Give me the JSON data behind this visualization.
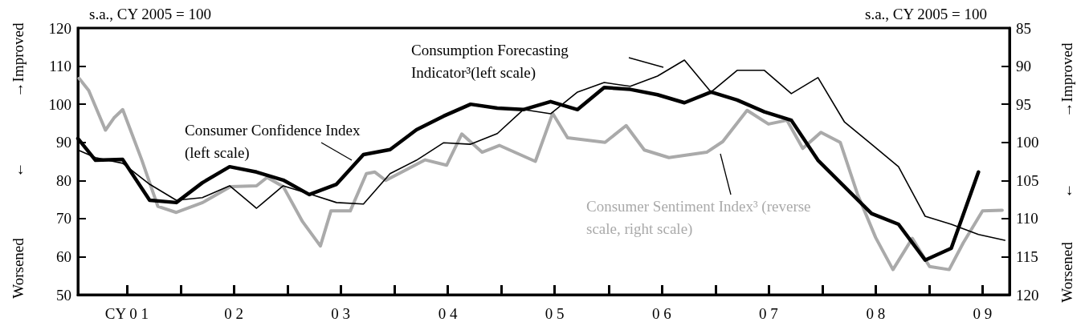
{
  "chart_data": {
    "type": "line",
    "ylabel": "s.a., CY 2005 = 100",
    "y2label": "s.a., CY 2005 = 100",
    "annotations": [
      "→Improved",
      "←",
      "Worsened",
      "→Improved",
      "←",
      "Worsened"
    ],
    "xlim": [
      "2001-01-15",
      "2009-10-01"
    ],
    "xticks": [
      {
        "value": "2001-07-01",
        "label": "CY 0 1"
      },
      {
        "value": "2002-01-01",
        "label": null
      },
      {
        "value": "2002-07-01",
        "label": "0 2"
      },
      {
        "value": "2003-01-01",
        "label": null
      },
      {
        "value": "2003-07-01",
        "label": "0 3"
      },
      {
        "value": "2004-01-01",
        "label": null
      },
      {
        "value": "2004-07-01",
        "label": "0 4"
      },
      {
        "value": "2005-01-01",
        "label": null
      },
      {
        "value": "2005-07-01",
        "label": "0 5"
      },
      {
        "value": "2006-01-01",
        "label": null
      },
      {
        "value": "2006-07-01",
        "label": "0 6"
      },
      {
        "value": "2007-01-01",
        "label": null
      },
      {
        "value": "2007-07-01",
        "label": "0 7"
      },
      {
        "value": "2008-01-01",
        "label": null
      },
      {
        "value": "2008-07-01",
        "label": "0 8"
      },
      {
        "value": "2009-01-01",
        "label": null
      },
      {
        "value": "2009-07-01",
        "label": "0 9"
      }
    ],
    "ylim": [
      50,
      120
    ],
    "yticks": [
      50,
      60,
      70,
      80,
      90,
      100,
      110,
      120
    ],
    "y2lim": [
      120,
      85
    ],
    "y2ticks": [
      85,
      90,
      95,
      100,
      105,
      110,
      115,
      120
    ],
    "grid": false,
    "legend": false,
    "marker": "none",
    "line_style": "solid",
    "series": [
      {
        "name": "Consumer Confidence Index (left scale)",
        "color": "#000000",
        "x": [
          "2001-01-15",
          "2001-03-16",
          "2001-06-17",
          "2001-09-17",
          "2001-12-17",
          "2002-03-16",
          "2002-06-17",
          "2002-09-17",
          "2002-12-17",
          "2003-03-16",
          "2003-06-17",
          "2003-09-17",
          "2003-12-17",
          "2004-03-16",
          "2004-06-17",
          "2004-09-17",
          "2004-12-17",
          "2005-03-16",
          "2005-06-17",
          "2005-09-17",
          "2005-12-17",
          "2006-03-16",
          "2006-06-17",
          "2006-09-17",
          "2006-12-17",
          "2007-03-16",
          "2007-06-17",
          "2007-09-17",
          "2007-12-17",
          "2008-03-16",
          "2008-06-17",
          "2008-09-17",
          "2008-12-17",
          "2009-03-16",
          "2009-06-17"
        ],
        "values": [
          91,
          85.3,
          85.5,
          74.8,
          74.2,
          79.4,
          83.6,
          82.2,
          80.1,
          76.3,
          79,
          86.8,
          88.1,
          93.3,
          96.9,
          100,
          99,
          98.6,
          100.7,
          98.6,
          104.4,
          103.9,
          102.5,
          100.4,
          103.2,
          101.1,
          98,
          95.8,
          85.3,
          78.4,
          71.3,
          68.5,
          59.1,
          62.2,
          82.2
        ]
      },
      {
        "name": "Consumption Forecasting Indicator³(left scale)",
        "color": "#000000",
        "x": [
          "2001-01-15",
          "2001-03-16",
          "2001-06-17",
          "2001-09-17",
          "2001-12-17",
          "2002-03-16",
          "2002-06-17",
          "2002-09-17",
          "2002-12-17",
          "2003-03-16",
          "2003-06-17",
          "2003-09-17",
          "2003-12-17",
          "2004-03-16",
          "2004-06-17",
          "2004-09-17",
          "2004-12-17",
          "2005-03-16",
          "2005-06-17",
          "2005-09-17",
          "2005-12-17",
          "2006-03-16",
          "2006-06-17",
          "2006-09-17",
          "2006-12-17",
          "2007-03-16",
          "2007-06-17",
          "2007-09-17",
          "2007-12-17",
          "2008-03-16",
          "2008-06-17",
          "2008-09-17",
          "2008-12-17",
          "2009-03-16",
          "2009-06-17",
          "2009-09-15"
        ],
        "values": [
          88,
          86,
          84.5,
          79,
          74.8,
          75.5,
          78.6,
          72.7,
          78.6,
          76.5,
          74.2,
          73.8,
          81.8,
          85.3,
          89.9,
          89.5,
          92.3,
          98.6,
          97.5,
          103.2,
          105.7,
          104.7,
          107.4,
          111.6,
          103.2,
          108.9,
          108.9,
          102.8,
          107,
          95.4,
          89.5,
          83.6,
          70.6,
          68.5,
          65.8,
          64.3
        ]
      },
      {
        "name": "Consumer Sentiment Index³ (reverse scale, right scale)",
        "color": "#aaaaaa",
        "axis": "y2",
        "x": [
          "2001-01-19",
          "2001-02-21",
          "2001-04-19",
          "2001-05-18",
          "2001-06-17",
          "2001-08-21",
          "2001-10-15",
          "2001-12-17",
          "2002-03-17",
          "2002-06-20",
          "2002-09-17",
          "2002-10-23",
          "2002-12-17",
          "2003-02-21",
          "2003-04-23",
          "2003-05-29",
          "2003-08-03",
          "2003-09-27",
          "2003-10-26",
          "2003-12-02",
          "2004-04-15",
          "2004-06-27",
          "2004-08-18",
          "2004-10-26",
          "2004-12-24",
          "2005-04-26",
          "2005-06-24",
          "2005-08-14",
          "2005-12-20",
          "2006-03-02",
          "2006-05-03",
          "2006-07-26",
          "2006-12-02",
          "2007-01-26",
          "2007-04-19",
          "2007-07-01",
          "2007-09-02",
          "2007-10-26",
          "2007-12-27",
          "2008-03-02",
          "2008-04-30",
          "2008-07-01",
          "2008-08-29",
          "2008-11-03",
          "2009-01-01",
          "2009-03-09",
          "2009-04-26",
          "2009-07-01",
          "2009-09-06"
        ],
        "values": [
          91.6,
          93.2,
          98.4,
          96.8,
          95.7,
          102.3,
          108.4,
          109.2,
          107.9,
          105.8,
          105.7,
          104.6,
          105.8,
          110.4,
          113.6,
          109,
          109,
          104.1,
          103.9,
          105,
          102.3,
          103,
          98.9,
          101.3,
          100.4,
          102.5,
          96.2,
          99.4,
          100,
          97.8,
          101,
          102,
          101.3,
          99.9,
          95.8,
          97.6,
          97.1,
          100.8,
          98.7,
          100,
          106.8,
          112.5,
          116.7,
          112.6,
          116.3,
          116.7,
          113.2,
          109,
          108.9
        ]
      }
    ]
  }
}
